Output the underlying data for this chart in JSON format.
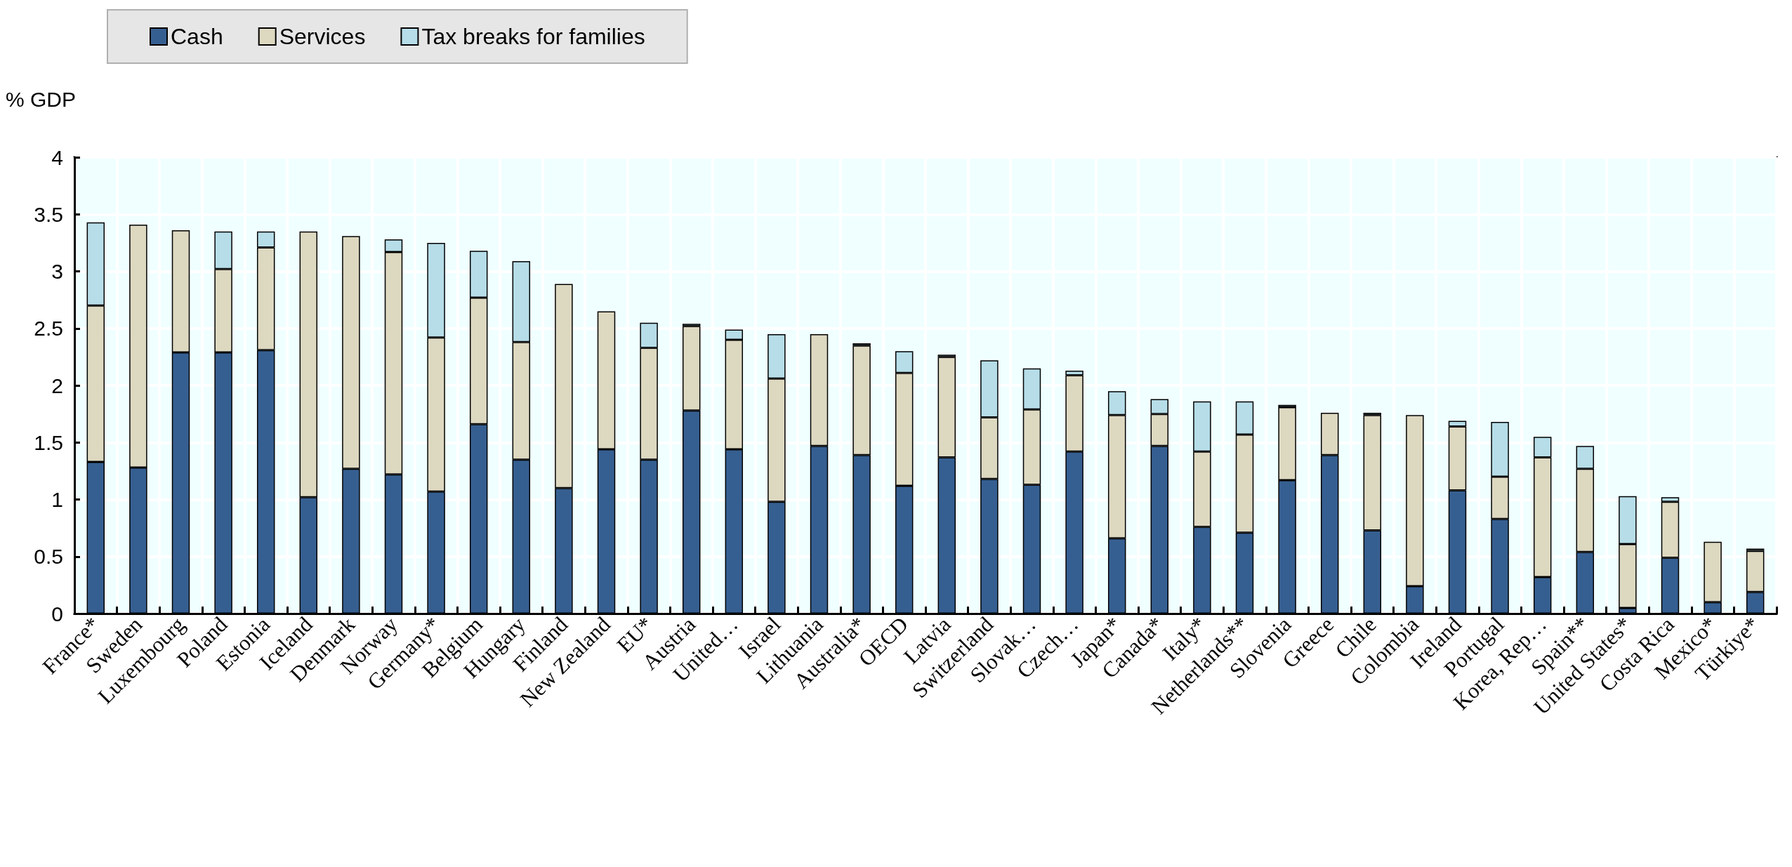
{
  "chart_data": {
    "type": "bar",
    "stacked": true,
    "ylabel": "% GDP",
    "legend": "top left",
    "grid": true,
    "categories": [
      "France*",
      "Sweden",
      "Luxembourg",
      "Poland",
      "Estonia",
      "Iceland",
      "Denmark",
      "Norway",
      "Germany*",
      "Belgium",
      "Hungary",
      "Finland",
      "New Zealand",
      "EU*",
      "Austria",
      "United…",
      "Israel",
      "Lithuania",
      "Australia*",
      "OECD",
      "Latvia",
      "Switzerland",
      "Slovak…",
      "Czech…",
      "Japan*",
      "Canada*",
      "Italy*",
      "Netherlands**",
      "Slovenia",
      "Greece",
      "Chile",
      "Colombia",
      "Ireland",
      "Portugal",
      "Korea, Rep…",
      "Spain**",
      "United States*",
      "Costa Rica",
      "Mexico*",
      "Türkiye*"
    ],
    "series": [
      {
        "name": "Cash",
        "color": "#365f91",
        "values": [
          1.33,
          1.28,
          2.29,
          2.29,
          2.31,
          1.02,
          1.27,
          1.22,
          1.07,
          1.66,
          1.35,
          1.1,
          1.44,
          1.35,
          1.78,
          1.44,
          0.98,
          1.47,
          1.39,
          1.12,
          1.37,
          1.18,
          1.13,
          1.42,
          0.66,
          1.47,
          0.76,
          0.71,
          1.17,
          1.39,
          0.73,
          0.24,
          1.08,
          0.83,
          0.32,
          0.54,
          0.05,
          0.49,
          0.1,
          0.19
        ]
      },
      {
        "name": "Services",
        "color": "#ddd8c0",
        "values": [
          1.37,
          2.13,
          1.07,
          0.73,
          0.9,
          2.33,
          2.04,
          1.95,
          1.35,
          1.11,
          1.03,
          1.79,
          1.21,
          0.98,
          0.74,
          0.96,
          1.08,
          0.98,
          0.96,
          0.99,
          0.88,
          0.54,
          0.66,
          0.67,
          1.08,
          0.28,
          0.66,
          0.86,
          0.64,
          0.37,
          1.01,
          1.5,
          0.56,
          0.37,
          1.05,
          0.73,
          0.56,
          0.49,
          0.53,
          0.36
        ]
      },
      {
        "name": "Tax breaks for families",
        "color": "#b6dde8",
        "values": [
          0.73,
          null,
          null,
          0.33,
          0.14,
          null,
          null,
          0.11,
          0.83,
          0.41,
          0.71,
          null,
          null,
          0.22,
          0.02,
          0.09,
          0.39,
          null,
          0.02,
          0.19,
          0.02,
          0.5,
          0.36,
          0.04,
          0.21,
          0.13,
          0.44,
          0.29,
          0.02,
          null,
          0.02,
          null,
          0.05,
          0.48,
          0.18,
          0.2,
          0.42,
          0.04,
          null,
          0.02
        ]
      }
    ],
    "ylim": [
      0,
      4
    ],
    "yticks": [
      0,
      0.5,
      1,
      1.5,
      2,
      2.5,
      3,
      3.5,
      4
    ]
  }
}
